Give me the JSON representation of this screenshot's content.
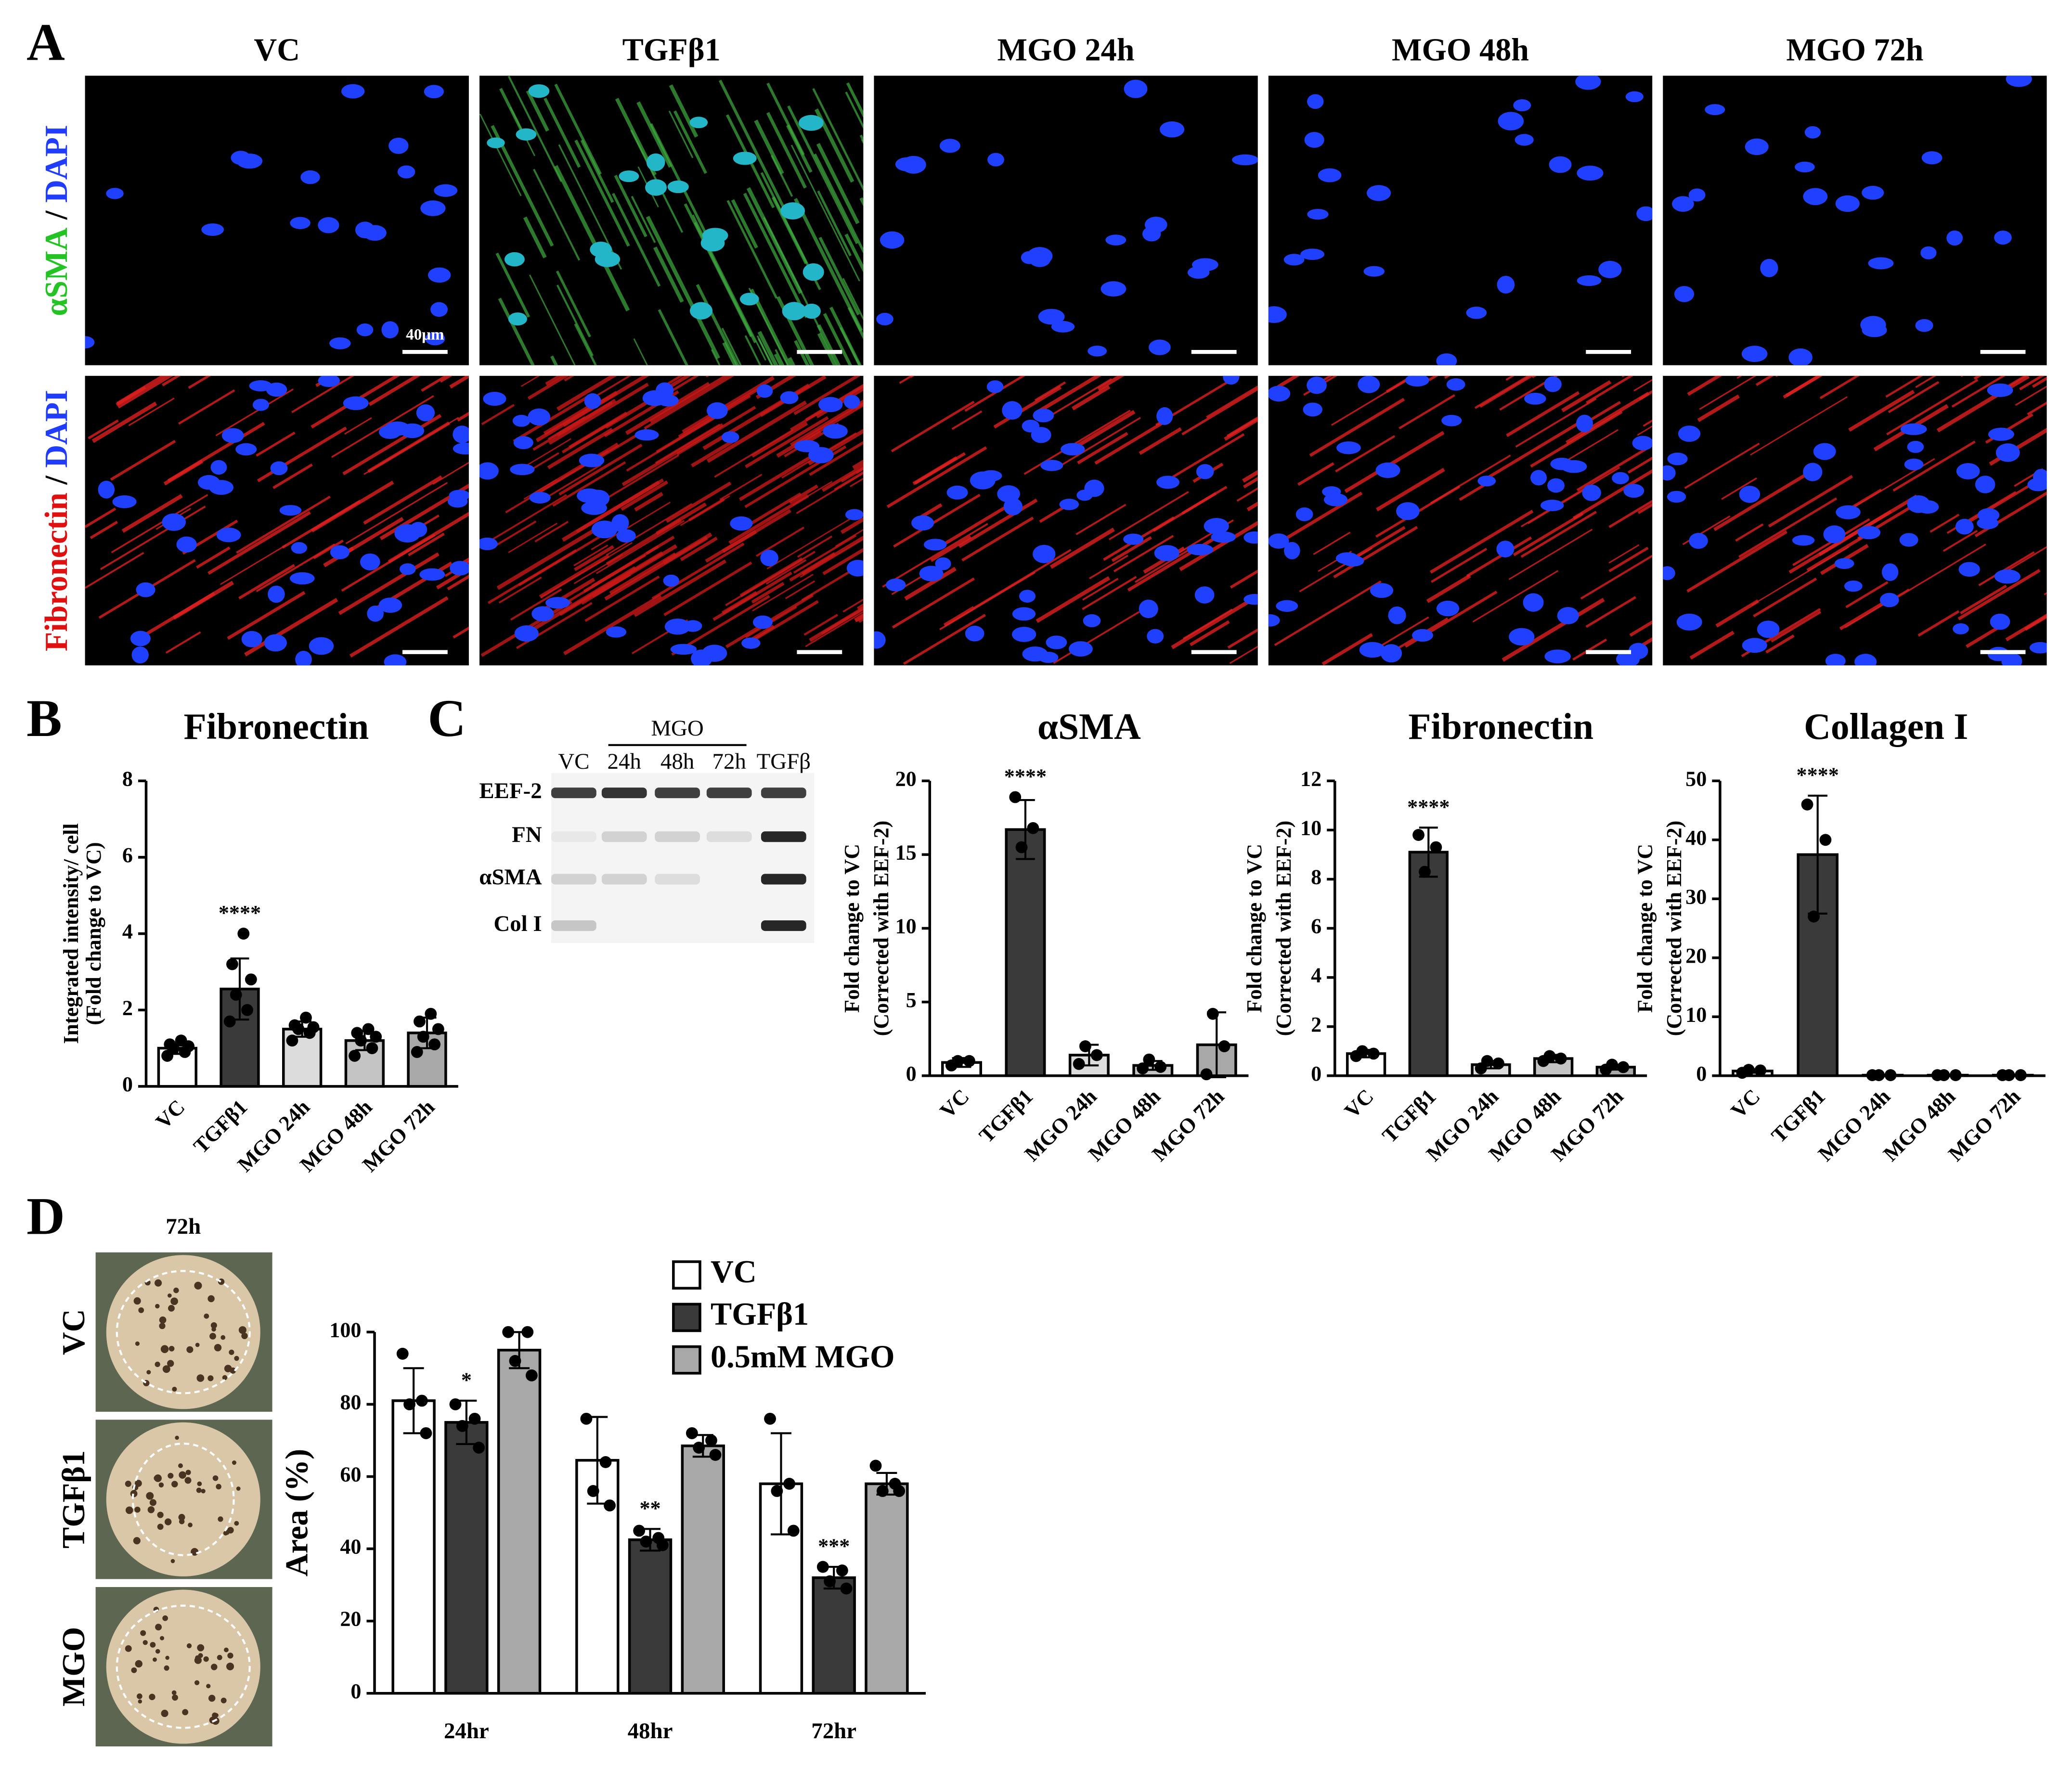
{
  "figure": {
    "panel_labels": [
      "A",
      "B",
      "C",
      "D"
    ]
  },
  "panel_a": {
    "columns": [
      "VC",
      "TGFβ1",
      "MGO 24h",
      "MGO 48h",
      "MGO 72h"
    ],
    "rows": [
      [
        "αSMA",
        " / ",
        "DAPI"
      ],
      [
        "Fibronectin",
        " / ",
        "DAPI"
      ]
    ],
    "scale_bar": "40μm"
  },
  "panel_c_blot": {
    "group_label": "MGO",
    "lanes": [
      "VC",
      "24h",
      "48h",
      "72h",
      "TGFβ"
    ],
    "proteins": [
      "EEF-2",
      "FN",
      "αSMA",
      "Col I"
    ]
  },
  "panel_d_images": {
    "title": "72h",
    "rows": [
      "VC",
      "TGFβ1",
      "MGO"
    ]
  },
  "chart_data": [
    {
      "type": "bar",
      "title": "Fibronectin",
      "ylabel": [
        "Integrated intensity/ cell",
        "(Fold change to VC)"
      ],
      "categories": [
        "VC",
        "TGFβ1",
        "MGO 24h",
        "MGO 48h",
        "MGO 72h"
      ],
      "values": [
        1.0,
        2.55,
        1.5,
        1.2,
        1.4
      ],
      "errors": [
        0.15,
        0.8,
        0.2,
        0.25,
        0.4
      ],
      "points": [
        [
          0.8,
          0.9,
          1.0,
          1.05,
          1.1,
          1.2
        ],
        [
          1.7,
          2.0,
          2.4,
          2.8,
          3.2,
          4.0
        ],
        [
          1.2,
          1.4,
          1.5,
          1.55,
          1.6,
          1.8
        ],
        [
          0.8,
          1.0,
          1.2,
          1.3,
          1.4,
          1.5
        ],
        [
          0.9,
          1.1,
          1.3,
          1.5,
          1.7,
          1.9
        ]
      ],
      "colors": [
        "#ffffff",
        "#3a3a3a",
        "#dcdcdc",
        "#c4c4c4",
        "#a8a8a8"
      ],
      "significance": [
        null,
        "****",
        null,
        null,
        null
      ],
      "ylim": [
        0,
        8
      ],
      "yticks": [
        0,
        2,
        4,
        6,
        8
      ]
    },
    {
      "type": "bar",
      "title": "αSMA",
      "ylabel": [
        "Fold change to VC",
        "(Corrected with EEF-2)"
      ],
      "categories": [
        "VC",
        "TGFβ1",
        "MGO 24h",
        "MGO 48h",
        "MGO 72h"
      ],
      "values": [
        0.9,
        16.7,
        1.4,
        0.7,
        2.1
      ],
      "errors": [
        0.3,
        2.0,
        0.7,
        0.3,
        2.2
      ],
      "points": [
        [
          0.7,
          1.0,
          1.0
        ],
        [
          18.9,
          16.8,
          15.5
        ],
        [
          0.8,
          1.4,
          2.0
        ],
        [
          0.5,
          0.6,
          1.1
        ],
        [
          0.1,
          2.0,
          4.2
        ]
      ],
      "colors": [
        "#ffffff",
        "#3a3a3a",
        "#dcdcdc",
        "#c4c4c4",
        "#a8a8a8"
      ],
      "significance": [
        null,
        "****",
        null,
        null,
        null
      ],
      "ylim": [
        0,
        20
      ],
      "yticks": [
        0,
        5,
        10,
        15,
        20
      ]
    },
    {
      "type": "bar",
      "title": "Fibronectin",
      "ylabel": [
        "Fold change to VC",
        "(Corrected with EEF-2)"
      ],
      "categories": [
        "VC",
        "TGFβ1",
        "MGO 24h",
        "MGO 48h",
        "MGO 72h"
      ],
      "values": [
        0.9,
        9.1,
        0.45,
        0.7,
        0.35
      ],
      "errors": [
        0.15,
        1.0,
        0.15,
        0.15,
        0.1
      ],
      "points": [
        [
          0.8,
          0.9,
          1.0
        ],
        [
          9.8,
          9.3,
          8.3
        ],
        [
          0.3,
          0.5,
          0.6
        ],
        [
          0.6,
          0.7,
          0.8
        ],
        [
          0.25,
          0.35,
          0.45
        ]
      ],
      "colors": [
        "#ffffff",
        "#3a3a3a",
        "#dcdcdc",
        "#c4c4c4",
        "#a8a8a8"
      ],
      "significance": [
        null,
        "****",
        null,
        null,
        null
      ],
      "ylim": [
        0,
        12
      ],
      "yticks": [
        0,
        2,
        4,
        6,
        8,
        10,
        12
      ]
    },
    {
      "type": "bar",
      "title": "Collagen I",
      "ylabel": [
        "Fold change to VC",
        "(Corrected with EEF-2)"
      ],
      "categories": [
        "VC",
        "TGFβ1",
        "MGO 24h",
        "MGO 48h",
        "MGO 72h"
      ],
      "values": [
        0.8,
        37.5,
        0.1,
        0.1,
        0.1
      ],
      "errors": [
        0.3,
        10,
        0,
        0,
        0
      ],
      "points": [
        [
          0.5,
          0.9,
          1.0
        ],
        [
          46,
          40,
          27
        ],
        [
          0.1,
          0.1,
          0.1
        ],
        [
          0.1,
          0.1,
          0.1
        ],
        [
          0.1,
          0.1,
          0.1
        ]
      ],
      "colors": [
        "#ffffff",
        "#3a3a3a",
        "#dcdcdc",
        "#c4c4c4",
        "#a8a8a8"
      ],
      "significance": [
        null,
        "****",
        null,
        null,
        null
      ],
      "ylim": [
        0,
        50
      ],
      "yticks": [
        0,
        10,
        20,
        30,
        40,
        50
      ]
    },
    {
      "type": "bar",
      "ylabel": [
        "Area (%)"
      ],
      "categories": [
        "24hr",
        "48hr",
        "72hr"
      ],
      "series": [
        {
          "name": "VC",
          "color": "#ffffff",
          "values": [
            81,
            64.5,
            58
          ],
          "errors": [
            9,
            12,
            14
          ],
          "points": [
            [
              94,
              81,
              80,
              72
            ],
            [
              76,
              64,
              56,
              52
            ],
            [
              76,
              58,
              56,
              45
            ]
          ],
          "significance": [
            null,
            null,
            null
          ]
        },
        {
          "name": "TGFβ1",
          "color": "#3a3a3a",
          "values": [
            75,
            42.5,
            32
          ],
          "errors": [
            6,
            3,
            3
          ],
          "points": [
            [
              80,
              76,
              74,
              68
            ],
            [
              45,
              43,
              42,
              41
            ],
            [
              35,
              34,
              31,
              29
            ]
          ],
          "significance": [
            "*",
            "**",
            "***"
          ]
        },
        {
          "name": "0.5mM MGO",
          "color": "#a8a8a8",
          "values": [
            95,
            68.5,
            58
          ],
          "errors": [
            5,
            3,
            3
          ],
          "points": [
            [
              100,
              100,
              92,
              88
            ],
            [
              72,
              70,
              68,
              66
            ],
            [
              63,
              58,
              56,
              56
            ]
          ],
          "significance": [
            null,
            null,
            null
          ]
        }
      ],
      "ylim": [
        0,
        100
      ],
      "yticks": [
        0,
        20,
        40,
        60,
        80,
        100
      ]
    }
  ]
}
